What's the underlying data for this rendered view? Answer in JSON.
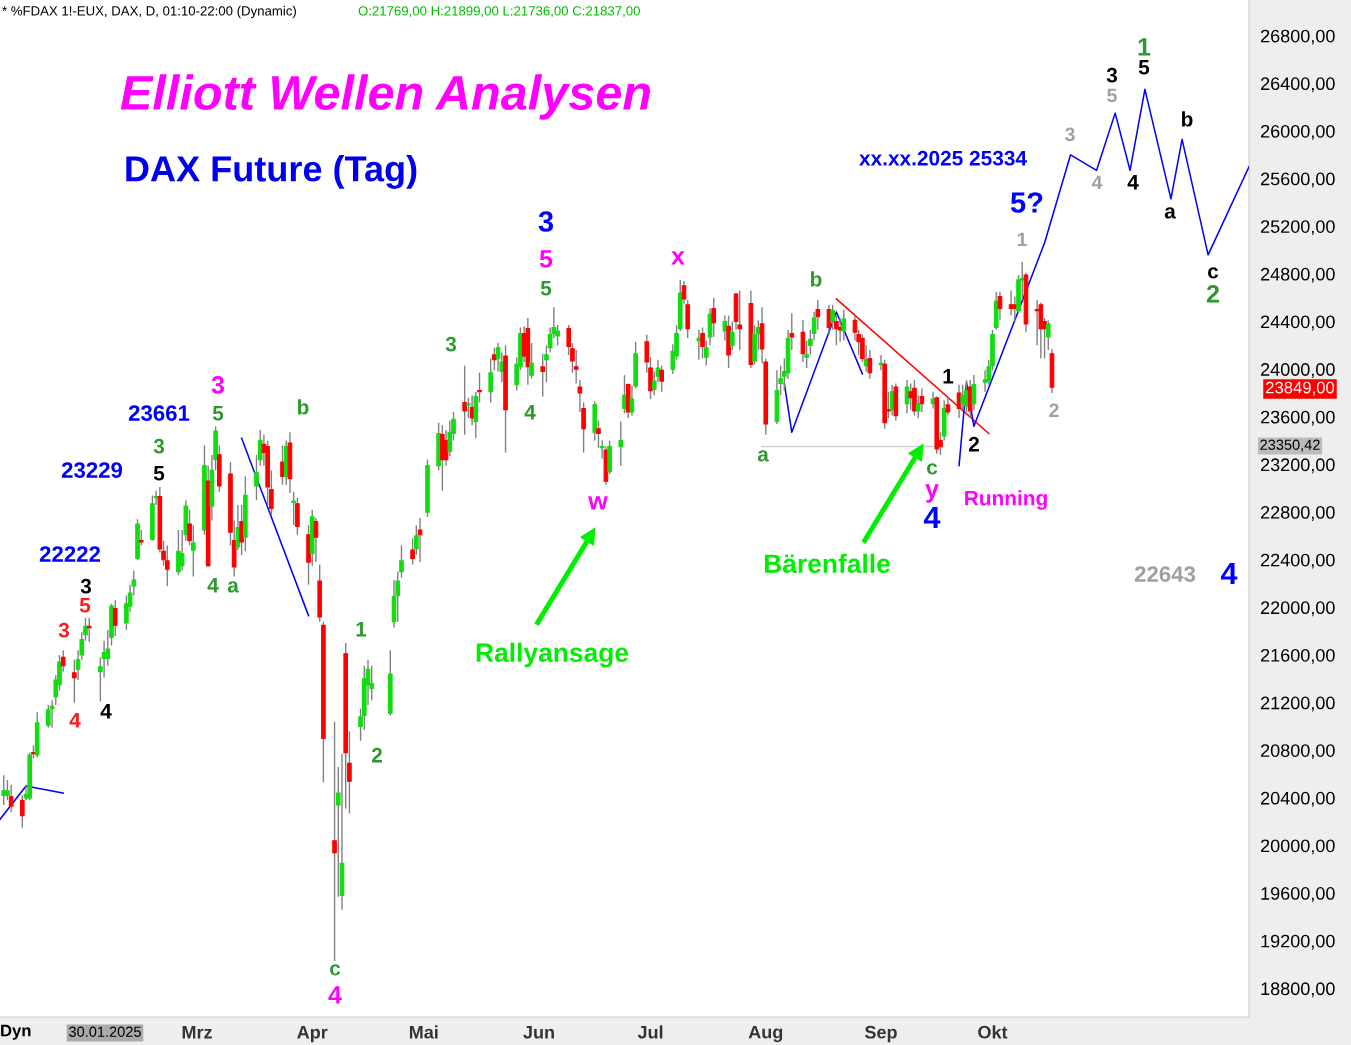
{
  "chart_data": {
    "type": "candlestick",
    "title": "Elliott Wellen Analysen",
    "subtitle": "DAX Future (Tag)",
    "x": [
      "2025-01-08",
      "2025-01-09",
      "2025-01-10",
      "2025-01-13",
      "2025-01-14",
      "2025-01-15",
      "2025-01-16",
      "2025-01-17",
      "2025-01-20",
      "2025-01-21",
      "2025-01-22",
      "2025-01-23",
      "2025-01-24",
      "2025-01-27",
      "2025-01-28",
      "2025-01-29",
      "2025-01-30",
      "2025-01-31",
      "2025-02-03",
      "2025-02-04",
      "2025-02-05",
      "2025-02-06",
      "2025-02-07",
      "2025-02-10",
      "2025-02-11",
      "2025-02-12",
      "2025-02-13",
      "2025-02-14",
      "2025-02-17",
      "2025-02-18",
      "2025-02-19",
      "2025-02-20",
      "2025-02-21",
      "2025-02-24",
      "2025-02-25",
      "2025-02-26",
      "2025-02-27",
      "2025-02-28",
      "2025-03-03",
      "2025-03-04",
      "2025-03-05",
      "2025-03-06",
      "2025-03-07",
      "2025-03-10",
      "2025-03-11",
      "2025-03-12",
      "2025-03-13",
      "2025-03-14",
      "2025-03-17",
      "2025-03-18",
      "2025-03-19",
      "2025-03-20",
      "2025-03-21",
      "2025-03-24",
      "2025-03-25",
      "2025-03-26",
      "2025-03-27",
      "2025-03-28",
      "2025-03-31",
      "2025-04-01",
      "2025-04-02",
      "2025-04-03",
      "2025-04-04",
      "2025-04-07",
      "2025-04-08",
      "2025-04-09",
      "2025-04-10",
      "2025-04-11",
      "2025-04-14",
      "2025-04-15",
      "2025-04-16",
      "2025-04-17",
      "2025-04-22",
      "2025-04-23",
      "2025-04-24",
      "2025-04-25",
      "2025-04-28",
      "2025-04-29",
      "2025-04-30",
      "2025-05-02",
      "2025-05-05",
      "2025-05-06",
      "2025-05-07",
      "2025-05-08",
      "2025-05-09",
      "2025-05-12",
      "2025-05-13",
      "2025-05-14",
      "2025-05-15",
      "2025-05-16",
      "2025-05-19",
      "2025-05-20",
      "2025-05-21",
      "2025-05-22",
      "2025-05-23",
      "2025-05-26",
      "2025-05-27",
      "2025-05-28",
      "2025-05-29",
      "2025-05-30",
      "2025-06-02",
      "2025-06-03",
      "2025-06-04",
      "2025-06-05",
      "2025-06-06",
      "2025-06-09",
      "2025-06-10",
      "2025-06-11",
      "2025-06-12",
      "2025-06-13",
      "2025-06-16",
      "2025-06-17",
      "2025-06-18",
      "2025-06-19",
      "2025-06-20",
      "2025-06-23",
      "2025-06-24",
      "2025-06-25",
      "2025-06-26",
      "2025-06-27",
      "2025-06-30",
      "2025-07-01",
      "2025-07-02",
      "2025-07-03",
      "2025-07-04",
      "2025-07-07",
      "2025-07-08",
      "2025-07-09",
      "2025-07-10",
      "2025-07-11",
      "2025-07-14",
      "2025-07-15",
      "2025-07-16",
      "2025-07-17",
      "2025-07-18",
      "2025-07-21",
      "2025-07-22",
      "2025-07-23",
      "2025-07-24",
      "2025-07-25",
      "2025-07-28",
      "2025-07-29",
      "2025-07-30",
      "2025-07-31",
      "2025-08-01",
      "2025-08-04",
      "2025-08-05",
      "2025-08-06",
      "2025-08-07",
      "2025-08-08",
      "2025-08-11",
      "2025-08-12",
      "2025-08-13",
      "2025-08-14",
      "2025-08-15",
      "2025-08-18",
      "2025-08-19",
      "2025-08-20",
      "2025-08-21",
      "2025-08-22",
      "2025-08-25",
      "2025-08-26",
      "2025-08-27",
      "2025-08-28",
      "2025-08-29",
      "2025-09-01",
      "2025-09-02",
      "2025-09-03",
      "2025-09-04",
      "2025-09-05",
      "2025-09-08",
      "2025-09-09",
      "2025-09-10",
      "2025-09-11",
      "2025-09-12",
      "2025-09-15",
      "2025-09-16",
      "2025-09-17",
      "2025-09-18",
      "2025-09-19",
      "2025-09-22",
      "2025-09-23",
      "2025-09-24",
      "2025-09-25",
      "2025-09-26",
      "2025-09-29",
      "2025-09-30",
      "2025-10-01",
      "2025-10-02",
      "2025-10-03",
      "2025-10-06",
      "2025-10-07",
      "2025-10-08",
      "2025-10-09",
      "2025-10-10",
      "2025-10-13",
      "2025-10-14",
      "2025-10-15",
      "2025-10-16",
      "2025-10-17"
    ],
    "ohlc": [
      [
        20420,
        20590,
        20340,
        20460
      ],
      [
        20420,
        20550,
        20380,
        20460
      ],
      [
        20410,
        20510,
        20280,
        20330
      ],
      [
        20380,
        20420,
        20150,
        20250
      ],
      [
        20400,
        20510,
        20380,
        20430
      ],
      [
        20400,
        20780,
        20380,
        20760
      ],
      [
        20780,
        20840,
        20730,
        20770
      ],
      [
        20760,
        21120,
        20740,
        21030
      ],
      [
        21010,
        21180,
        20990,
        21140
      ],
      [
        21150,
        21220,
        20990,
        21170
      ],
      [
        21250,
        21430,
        21180,
        21390
      ],
      [
        21350,
        21600,
        21300,
        21540
      ],
      [
        21580,
        21640,
        21460,
        21510
      ],
      [
        21450,
        21560,
        21200,
        21410
      ],
      [
        21480,
        21640,
        21390,
        21560
      ],
      [
        21600,
        21790,
        21560,
        21730
      ],
      [
        21770,
        21910,
        21720,
        21840
      ],
      [
        21840,
        21910,
        21710,
        21830
      ],
      [
        21460,
        21580,
        21210,
        21500
      ],
      [
        21570,
        21720,
        21410,
        21620
      ],
      [
        21570,
        21810,
        21510,
        21650
      ],
      [
        21750,
        22030,
        21680,
        22010
      ],
      [
        21990,
        22060,
        21760,
        21850
      ],
      [
        21870,
        22100,
        21810,
        22030
      ],
      [
        22010,
        22190,
        21960,
        22120
      ],
      [
        22180,
        22310,
        22100,
        22230
      ],
      [
        22410,
        22740,
        22400,
        22700
      ],
      [
        22560,
        22650,
        22520,
        22550
      ],
      [
        22570,
        22940,
        22560,
        22870
      ],
      [
        22920,
        22980,
        22860,
        22930
      ],
      [
        22930,
        23010,
        22460,
        22490
      ],
      [
        22470,
        22560,
        22350,
        22400
      ],
      [
        22390,
        22520,
        22180,
        22320
      ],
      [
        22300,
        22650,
        22270,
        22470
      ],
      [
        22350,
        22650,
        22310,
        22450
      ],
      [
        22610,
        22900,
        22560,
        22850
      ],
      [
        22700,
        22820,
        22520,
        22560
      ],
      [
        22480,
        22690,
        22260,
        22540
      ],
      [
        22650,
        23360,
        22610,
        23190
      ],
      [
        23060,
        23190,
        22340,
        22350
      ],
      [
        22850,
        23280,
        22730,
        23150
      ],
      [
        23240,
        23520,
        23150,
        23480
      ],
      [
        23280,
        23360,
        22970,
        23020
      ],
      [
        23120,
        23220,
        22520,
        22630
      ],
      [
        22560,
        22730,
        22260,
        22340
      ],
      [
        22510,
        22860,
        22480,
        22670
      ],
      [
        22720,
        22860,
        22440,
        22550
      ],
      [
        22590,
        23100,
        22470,
        22940
      ],
      [
        23020,
        23280,
        22900,
        23130
      ],
      [
        23240,
        23490,
        23190,
        23400
      ],
      [
        23370,
        23450,
        23190,
        23300
      ],
      [
        23350,
        23400,
        22860,
        23010
      ],
      [
        22990,
        23150,
        22770,
        22830
      ],
      [
        23220,
        23360,
        23030,
        23100
      ],
      [
        23100,
        23400,
        23030,
        23350
      ],
      [
        23380,
        23470,
        22960,
        23080
      ],
      [
        22880,
        22970,
        22690,
        22890
      ],
      [
        22870,
        22920,
        22610,
        22680
      ],
      [
        22610,
        22690,
        22190,
        22380
      ],
      [
        22450,
        22820,
        22350,
        22760
      ],
      [
        22720,
        22750,
        22380,
        22590
      ],
      [
        22220,
        22360,
        21880,
        21920
      ],
      [
        21850,
        21880,
        20530,
        20900
      ],
      [
        20040,
        21040,
        19030,
        19940
      ],
      [
        20340,
        20660,
        19570,
        20440
      ],
      [
        19580,
        20770,
        19460,
        19850
      ],
      [
        21610,
        21700,
        20310,
        20780
      ],
      [
        20690,
        20960,
        20270,
        20540
      ],
      [
        21000,
        21150,
        20880,
        21080
      ],
      [
        21090,
        21510,
        20970,
        21400
      ],
      [
        21350,
        21560,
        21180,
        21480
      ],
      [
        21320,
        21510,
        21220,
        21360
      ],
      [
        21110,
        21640,
        21090,
        21440
      ],
      [
        21880,
        22230,
        21830,
        22090
      ],
      [
        22100,
        22300,
        21880,
        22220
      ],
      [
        22300,
        22520,
        22250,
        22390
      ],
      [
        22480,
        22580,
        22360,
        22410
      ],
      [
        22490,
        22690,
        22440,
        22600
      ],
      [
        22650,
        22750,
        22380,
        22610
      ],
      [
        22800,
        23240,
        22760,
        23190
      ],
      [
        23190,
        23550,
        23150,
        23460
      ],
      [
        23450,
        23530,
        22980,
        23240
      ],
      [
        23400,
        23490,
        23190,
        23240
      ],
      [
        23310,
        23570,
        23270,
        23470
      ],
      [
        23460,
        23640,
        23400,
        23580
      ],
      [
        23720,
        24030,
        23450,
        23650
      ],
      [
        23700,
        23760,
        23590,
        23710
      ],
      [
        23680,
        23780,
        23530,
        23590
      ],
      [
        23560,
        23810,
        23420,
        23770
      ],
      [
        23820,
        23970,
        23720,
        23810
      ],
      [
        23810,
        24090,
        23720,
        23970
      ],
      [
        24120,
        24180,
        23990,
        24080
      ],
      [
        24090,
        24220,
        23980,
        24180
      ],
      [
        23980,
        24140,
        23890,
        24060
      ],
      [
        24110,
        24200,
        23300,
        23660
      ],
      [
        23870,
        24100,
        23820,
        24040
      ],
      [
        24020,
        24350,
        23990,
        24300
      ],
      [
        24300,
        24360,
        24060,
        24110
      ],
      [
        24340,
        24430,
        23870,
        24020
      ],
      [
        23950,
        24220,
        23920,
        24050
      ],
      [
        24020,
        24130,
        23770,
        23980
      ],
      [
        24080,
        24200,
        23890,
        24120
      ],
      [
        24180,
        24350,
        24140,
        24290
      ],
      [
        24300,
        24520,
        24260,
        24350
      ],
      [
        24280,
        24370,
        24200,
        24320
      ],
      [
        24340,
        24370,
        24120,
        24190
      ],
      [
        24170,
        24220,
        23970,
        24070
      ],
      [
        24020,
        24160,
        23880,
        24000
      ],
      [
        23850,
        23910,
        23640,
        23800
      ],
      [
        23670,
        23720,
        23300,
        23500
      ],
      [
        23470,
        23730,
        23400,
        23700
      ],
      [
        23500,
        23570,
        23340,
        23460
      ],
      [
        23340,
        23400,
        23250,
        23350
      ],
      [
        23320,
        23350,
        23030,
        23060
      ],
      [
        23140,
        23400,
        23120,
        23350
      ],
      [
        23350,
        23560,
        23190,
        23400
      ],
      [
        23670,
        23950,
        23630,
        23780
      ],
      [
        23870,
        23880,
        23590,
        23640
      ],
      [
        23640,
        23860,
        23610,
        23750
      ],
      [
        23860,
        24230,
        23840,
        24130
      ],
      [
        24230,
        24290,
        23970,
        24060
      ],
      [
        24010,
        24100,
        23750,
        23820
      ],
      [
        23830,
        23980,
        23780,
        23900
      ],
      [
        23940,
        24080,
        23890,
        24010
      ],
      [
        23990,
        24030,
        23810,
        23900
      ],
      [
        24000,
        24210,
        23960,
        24150
      ],
      [
        24110,
        24370,
        24080,
        24300
      ],
      [
        24340,
        24750,
        24320,
        24640
      ],
      [
        24700,
        24740,
        24550,
        24590
      ],
      [
        24540,
        24580,
        24260,
        24340
      ],
      [
        24240,
        24330,
        24080,
        24260
      ],
      [
        24300,
        24350,
        24090,
        24190
      ],
      [
        24100,
        24240,
        24030,
        24180
      ],
      [
        24270,
        24510,
        24200,
        24460
      ],
      [
        24510,
        24600,
        24270,
        24390
      ],
      [
        24320,
        24450,
        24240,
        24400
      ],
      [
        24360,
        24450,
        24010,
        24120
      ],
      [
        24200,
        24400,
        24160,
        24310
      ],
      [
        24630,
        24640,
        24330,
        24400
      ],
      [
        24370,
        24660,
        24160,
        24340
      ],
      [
        24550,
        24660,
        24010,
        24040
      ],
      [
        24070,
        24370,
        24040,
        24290
      ],
      [
        24300,
        24410,
        24160,
        24350
      ],
      [
        24380,
        24520,
        24050,
        24170
      ],
      [
        24060,
        24090,
        23450,
        23540
      ],
      [
        23560,
        23990,
        23540,
        23820
      ],
      [
        23880,
        24030,
        23780,
        23920
      ],
      [
        23940,
        24090,
        23820,
        23980
      ],
      [
        23970,
        24330,
        23920,
        24260
      ],
      [
        24300,
        24470,
        24160,
        24270
      ],
      [
        24310,
        24410,
        24060,
        24130
      ],
      [
        24100,
        24240,
        24010,
        24120
      ],
      [
        24200,
        24330,
        24120,
        24250
      ],
      [
        24300,
        24480,
        24240,
        24430
      ],
      [
        24500,
        24580,
        24330,
        24440
      ],
      [
        24500,
        24540,
        24290,
        24350
      ],
      [
        24400,
        24540,
        24330,
        24490
      ],
      [
        24400,
        24450,
        24200,
        24340
      ],
      [
        24350,
        24430,
        24230,
        24330
      ],
      [
        24320,
        24500,
        24240,
        24420
      ],
      [
        24410,
        24450,
        24240,
        24310
      ],
      [
        24290,
        24330,
        24120,
        24230
      ],
      [
        24260,
        24290,
        24060,
        24090
      ],
      [
        24030,
        24200,
        23980,
        24080
      ],
      [
        24090,
        24160,
        23920,
        23970
      ],
      [
        24040,
        24120,
        23990,
        24050
      ],
      [
        24040,
        24080,
        23500,
        23550
      ],
      [
        23660,
        23810,
        23590,
        23650
      ],
      [
        23660,
        23870,
        23610,
        23810
      ],
      [
        23850,
        23880,
        23570,
        23610
      ],
      [
        23710,
        23910,
        23630,
        23850
      ],
      [
        23810,
        23880,
        23660,
        23760
      ],
      [
        23840,
        23910,
        23610,
        23650
      ],
      [
        23650,
        23780,
        23590,
        23710
      ],
      [
        23770,
        23840,
        23640,
        23710
      ],
      [
        23710,
        23810,
        23670,
        23750
      ],
      [
        23760,
        23770,
        23290,
        23330
      ],
      [
        23400,
        23470,
        23280,
        23350
      ],
      [
        23440,
        23740,
        23400,
        23670
      ],
      [
        23700,
        23760,
        23610,
        23640
      ],
      [
        23800,
        23870,
        23590,
        23670
      ],
      [
        23710,
        23870,
        23660,
        23780
      ],
      [
        23690,
        23910,
        23640,
        23820
      ],
      [
        23850,
        23910,
        23590,
        23650
      ],
      [
        23710,
        23950,
        23660,
        23870
      ],
      [
        23890,
        23990,
        23810,
        23910
      ],
      [
        23900,
        24080,
        23870,
        24020
      ],
      [
        24030,
        24330,
        23990,
        24290
      ],
      [
        24350,
        24650,
        24330,
        24570
      ],
      [
        24610,
        24650,
        24410,
        24510
      ],
      [
        24540,
        24660,
        24450,
        24510
      ],
      [
        24540,
        24610,
        24400,
        24510
      ],
      [
        24490,
        24790,
        24470,
        24750
      ],
      [
        24750,
        24900,
        24580,
        24760
      ],
      [
        24790,
        24810,
        24310,
        24380
      ],
      [
        24500,
        24580,
        24200,
        24490
      ],
      [
        24540,
        24560,
        24090,
        24340
      ],
      [
        24400,
        24430,
        24090,
        24340
      ],
      [
        24270,
        24410,
        24160,
        24380
      ],
      [
        24130,
        24170,
        23800,
        23849
      ]
    ],
    "xlim": [
      "2025-01-07",
      "2025-12-09"
    ],
    "xticks": [
      {
        "value": "2025-03-01",
        "label": "Mrz"
      },
      {
        "value": "2025-04-01",
        "label": "Apr"
      },
      {
        "value": "2025-05-01",
        "label": "Mai"
      },
      {
        "value": "2025-06-01",
        "label": "Jun"
      },
      {
        "value": "2025-07-01",
        "label": "Jul"
      },
      {
        "value": "2025-08-01",
        "label": "Aug"
      },
      {
        "value": "2025-09-01",
        "label": "Sep"
      },
      {
        "value": "2025-10-01",
        "label": "Okt"
      }
    ],
    "ylim": [
      18560,
      27100
    ],
    "yticks": [
      {
        "value": 18800,
        "label": "18800,00"
      },
      {
        "value": 19200,
        "label": "19200,00"
      },
      {
        "value": 19600,
        "label": "19600,00"
      },
      {
        "value": 20000,
        "label": "20000,00"
      },
      {
        "value": 20400,
        "label": "20400,00"
      },
      {
        "value": 20800,
        "label": "20800,00"
      },
      {
        "value": 21200,
        "label": "21200,00"
      },
      {
        "value": 21600,
        "label": "21600,00"
      },
      {
        "value": 22000,
        "label": "22000,00"
      },
      {
        "value": 22400,
        "label": "22400,00"
      },
      {
        "value": 22800,
        "label": "22800,00"
      },
      {
        "value": 23200,
        "label": "23200,00"
      },
      {
        "value": 23600,
        "label": "23600,00"
      },
      {
        "value": 24000,
        "label": "24000,00"
      },
      {
        "value": 24400,
        "label": "24400,00"
      },
      {
        "value": 24800,
        "label": "24800,00"
      },
      {
        "value": 25200,
        "label": "25200,00"
      },
      {
        "value": 25600,
        "label": "25600,00"
      },
      {
        "value": 26000,
        "label": "26000,00"
      },
      {
        "value": 26400,
        "label": "26400,00"
      },
      {
        "value": 26800,
        "label": "26800,00"
      }
    ],
    "series": [
      {
        "type": "line",
        "color": "#0000ff",
        "x": [
          "2025-01-07",
          "2025-01-14",
          "2025-01-24"
        ],
        "values": [
          20220,
          20500,
          20440
        ]
      },
      {
        "type": "line",
        "color": "#0000ff",
        "x": [
          "2025-03-13",
          "2025-03-31"
        ],
        "values": [
          23420,
          21930
        ]
      },
      {
        "type": "line",
        "color": "#0000ff",
        "x": [
          "2025-08-06",
          "2025-08-08",
          "2025-08-20",
          "2025-08-27"
        ],
        "values": [
          23880,
          23470,
          24480,
          23960
        ]
      },
      {
        "type": "line",
        "color": "#ff0000",
        "x": [
          "2025-08-20",
          "2025-09-30"
        ],
        "values": [
          24590,
          23460
        ]
      },
      {
        "type": "line",
        "color": "#d0d0d0",
        "x": [
          "2025-07-31",
          "2025-09-16"
        ],
        "values": [
          23350,
          23350
        ]
      },
      {
        "type": "line",
        "color": "#0000ff",
        "x": [
          "2025-09-22",
          "2025-09-24",
          "2025-09-26",
          "2025-10-15",
          "2025-10-22",
          "2025-10-29",
          "2025-11-03",
          "2025-11-07",
          "2025-11-11",
          "2025-11-18",
          "2025-11-21",
          "2025-11-28",
          "2025-12-09"
        ],
        "values": [
          23190,
          23890,
          23520,
          25060,
          25800,
          25670,
          26150,
          25670,
          26350,
          25430,
          25930,
          24960,
          25700
        ]
      }
    ],
    "annotations": [
      "* %FDAX 1!-EUX, DAX, D, 01:10-22:00 (Dynamic)",
      "O:21769,00 H:21899,00 L:21736,00 C:21837,00",
      "Dyn",
      "30.01.2025",
      "23849,00",
      "23350,42",
      "3",
      "5",
      "3",
      "4",
      "4",
      "22222",
      "23229",
      "3",
      "5",
      "23661",
      "3",
      "5",
      "4",
      "a",
      "b",
      "c",
      "4",
      "1",
      "2",
      "3",
      "4",
      "3",
      "5",
      "5",
      "w",
      "x",
      "b",
      "a",
      "1",
      "2",
      "c",
      "y",
      "4",
      "Running",
      "1",
      "5?",
      "xx.xx.2025 25334",
      "2",
      "3",
      "4",
      "5",
      "3",
      "4",
      "1",
      "5",
      "a",
      "b",
      "c",
      "2",
      "22643",
      "4",
      "Rallyansage",
      "Bärenfalle"
    ]
  }
}
